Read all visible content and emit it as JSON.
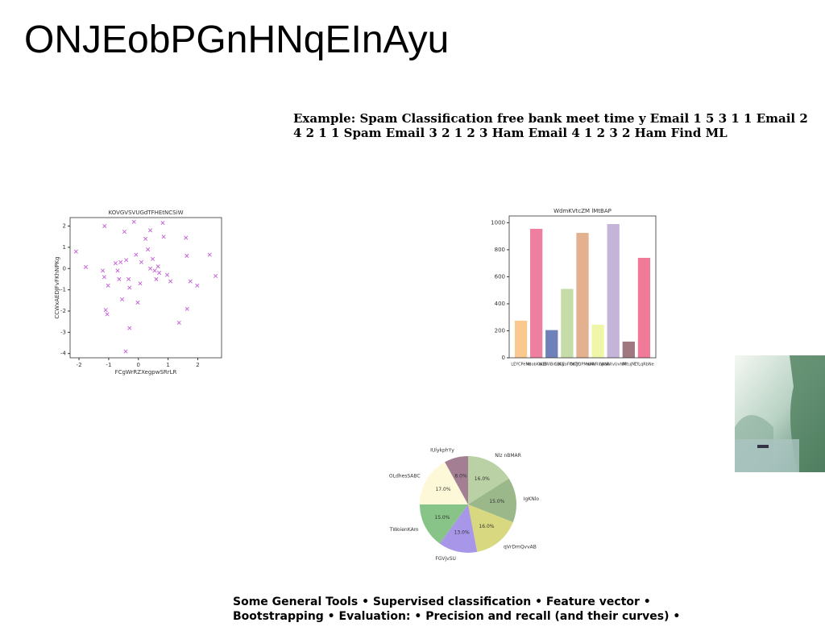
{
  "title": "ONJEobPGnHNqEInAyu",
  "paragraph": "Example: Spam Classification free bank meet time y Email 1 5 3 1 1 Email 2 4 2 1 1 Spam Email 3 2 1 2 3 Ham Email 4 1 2 3 2 Ham Find ML",
  "footer": "Some General Tools • Supervised classification • Feature vector • Bootstrapping • Evaluation: • Precision and recall (and their curves) •",
  "chart_data": [
    {
      "type": "scatter",
      "title": "KOVGVSVUGdTFHEtNCSiW",
      "x_label": "FCgWrRZXegpwSRrLR",
      "y_label": "CCWxAEDJFvFKhNPKg",
      "color": "#c35bd6",
      "marker": "x",
      "x": [
        -2.1,
        -1.77,
        -1.14,
        -1.2,
        -1.15,
        -1.1,
        -1.05,
        -1.02,
        -0.77,
        -0.7,
        -0.65,
        -0.55,
        -0.47,
        -0.41,
        -0.33,
        -0.3,
        -0.3,
        -0.43,
        -0.15,
        -0.08,
        -0.02,
        0.06,
        0.24,
        0.32,
        0.4,
        0.4,
        0.48,
        0.55,
        0.6,
        0.66,
        0.82,
        0.85,
        0.97,
        1.08,
        1.37,
        1.6,
        1.63,
        1.64,
        1.75,
        1.98,
        2.4,
        2.6,
        0.7,
        0.1,
        -0.6
      ],
      "values": [
        0.8,
        0.07,
        2.0,
        -0.1,
        -0.4,
        -1.95,
        -2.15,
        -0.8,
        0.25,
        -0.1,
        -0.5,
        -1.45,
        1.73,
        0.4,
        -0.5,
        -0.9,
        -2.8,
        -3.9,
        2.2,
        0.65,
        -1.6,
        -0.7,
        1.4,
        0.9,
        0.0,
        1.8,
        0.45,
        -0.1,
        -0.5,
        0.1,
        2.15,
        1.5,
        -0.3,
        -0.6,
        -2.55,
        1.45,
        0.6,
        -1.9,
        -0.6,
        -0.8,
        0.65,
        -0.35,
        -0.2,
        0.3,
        0.3
      ],
      "xlim": [
        -2.3,
        2.8
      ],
      "xticks": [
        -2,
        -1,
        0,
        1,
        2
      ],
      "ylim": [
        -4.2,
        2.4
      ],
      "yticks": [
        -4,
        -3,
        -2,
        -1,
        0,
        1,
        2
      ]
    },
    {
      "type": "bar",
      "title": "WdmKVtcZM lMtBAP",
      "categories": [
        "LEYCPeMt",
        "NdobKaUE",
        "WEWiBmxCE",
        "CBkyoFftdTY",
        "OKgQPMaMk",
        "HaWRlbpNo",
        "WaRXvUvhM",
        "IMtuJM",
        "ZfLqRbNe"
      ],
      "values": [
        275,
        955,
        205,
        510,
        925,
        245,
        990,
        120,
        740
      ],
      "colors": [
        "#f9c98f",
        "#ee7fa0",
        "#7080b8",
        "#c6dca8",
        "#e3b090",
        "#f0f5a8",
        "#c4b4d8",
        "#a07880",
        "#f07a98"
      ],
      "ylim": [
        0,
        1050
      ],
      "yticks": [
        0,
        200,
        400,
        600,
        800,
        1000
      ]
    },
    {
      "type": "pie",
      "categories": [
        "Nlz nBMAR",
        "IgKNlo",
        "qVrDmQvvAB",
        "FGVjvSU",
        "TWoienKAm",
        "OLdhesSABC",
        "IUlykphYy"
      ],
      "values": [
        16,
        15,
        16,
        13,
        15,
        17,
        8
      ],
      "value_labels": [
        "16.0%",
        "15.0%",
        "16.0%",
        "13.0%",
        "15.0%",
        "17.0%",
        "8.0%"
      ],
      "colors": [
        "#b9d1a4",
        "#9bb88a",
        "#d8d880",
        "#a896e8",
        "#88c488",
        "#fdf8d8",
        "#a47f94"
      ]
    }
  ]
}
